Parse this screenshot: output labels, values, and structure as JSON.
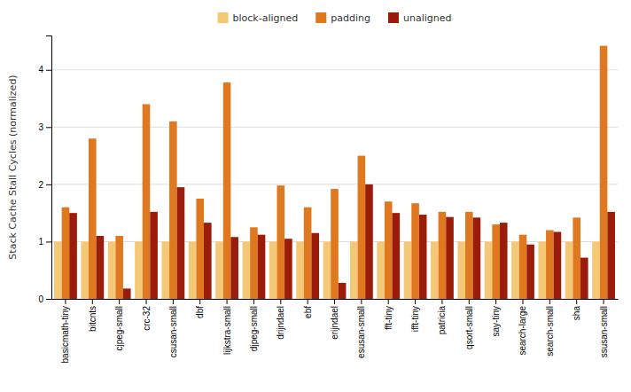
{
  "chart_data": {
    "type": "bar",
    "categories": [
      "basicmath-tiny",
      "bitcnts",
      "cjpeg-small",
      "crc-32",
      "csusan-small",
      "dbf",
      "lijkstra-small",
      "djpeg-small",
      "drijndael",
      "ebf",
      "erijndael",
      "esusan-small",
      "fft-tiny",
      "ifft-tiny",
      "patricia",
      "qsort-small",
      "say-tiny",
      "search-large",
      "search-small",
      "sha",
      "ssusan-small"
    ],
    "series": [
      {
        "name": "block-aligned",
        "color": "#F5C878",
        "values": [
          1.0,
          1.0,
          1.0,
          1.0,
          1.0,
          1.0,
          1.0,
          1.0,
          1.0,
          1.0,
          1.0,
          1.0,
          1.0,
          1.0,
          1.0,
          1.0,
          1.0,
          1.0,
          1.0,
          1.0,
          1.0
        ]
      },
      {
        "name": "padding",
        "color": "#E07820",
        "values": [
          1.6,
          2.8,
          1.1,
          3.4,
          3.1,
          1.75,
          3.78,
          1.25,
          1.98,
          1.6,
          1.92,
          2.5,
          1.7,
          1.67,
          1.52,
          1.52,
          1.3,
          1.12,
          1.2,
          1.42,
          4.42
        ]
      },
      {
        "name": "unaligned",
        "color": "#9B1C0A",
        "values": [
          1.5,
          1.1,
          0.18,
          1.52,
          1.95,
          1.33,
          1.08,
          1.12,
          1.05,
          1.15,
          0.28,
          2.0,
          1.5,
          1.47,
          1.43,
          1.42,
          1.33,
          0.95,
          1.17,
          0.72,
          1.52
        ]
      }
    ],
    "y_label": "Stack Cache Stall Cycles (normalized)",
    "ylim": [
      0,
      4.6
    ],
    "yticks": [
      0,
      1,
      2,
      3,
      4
    ],
    "grid": true,
    "legend": "top"
  }
}
